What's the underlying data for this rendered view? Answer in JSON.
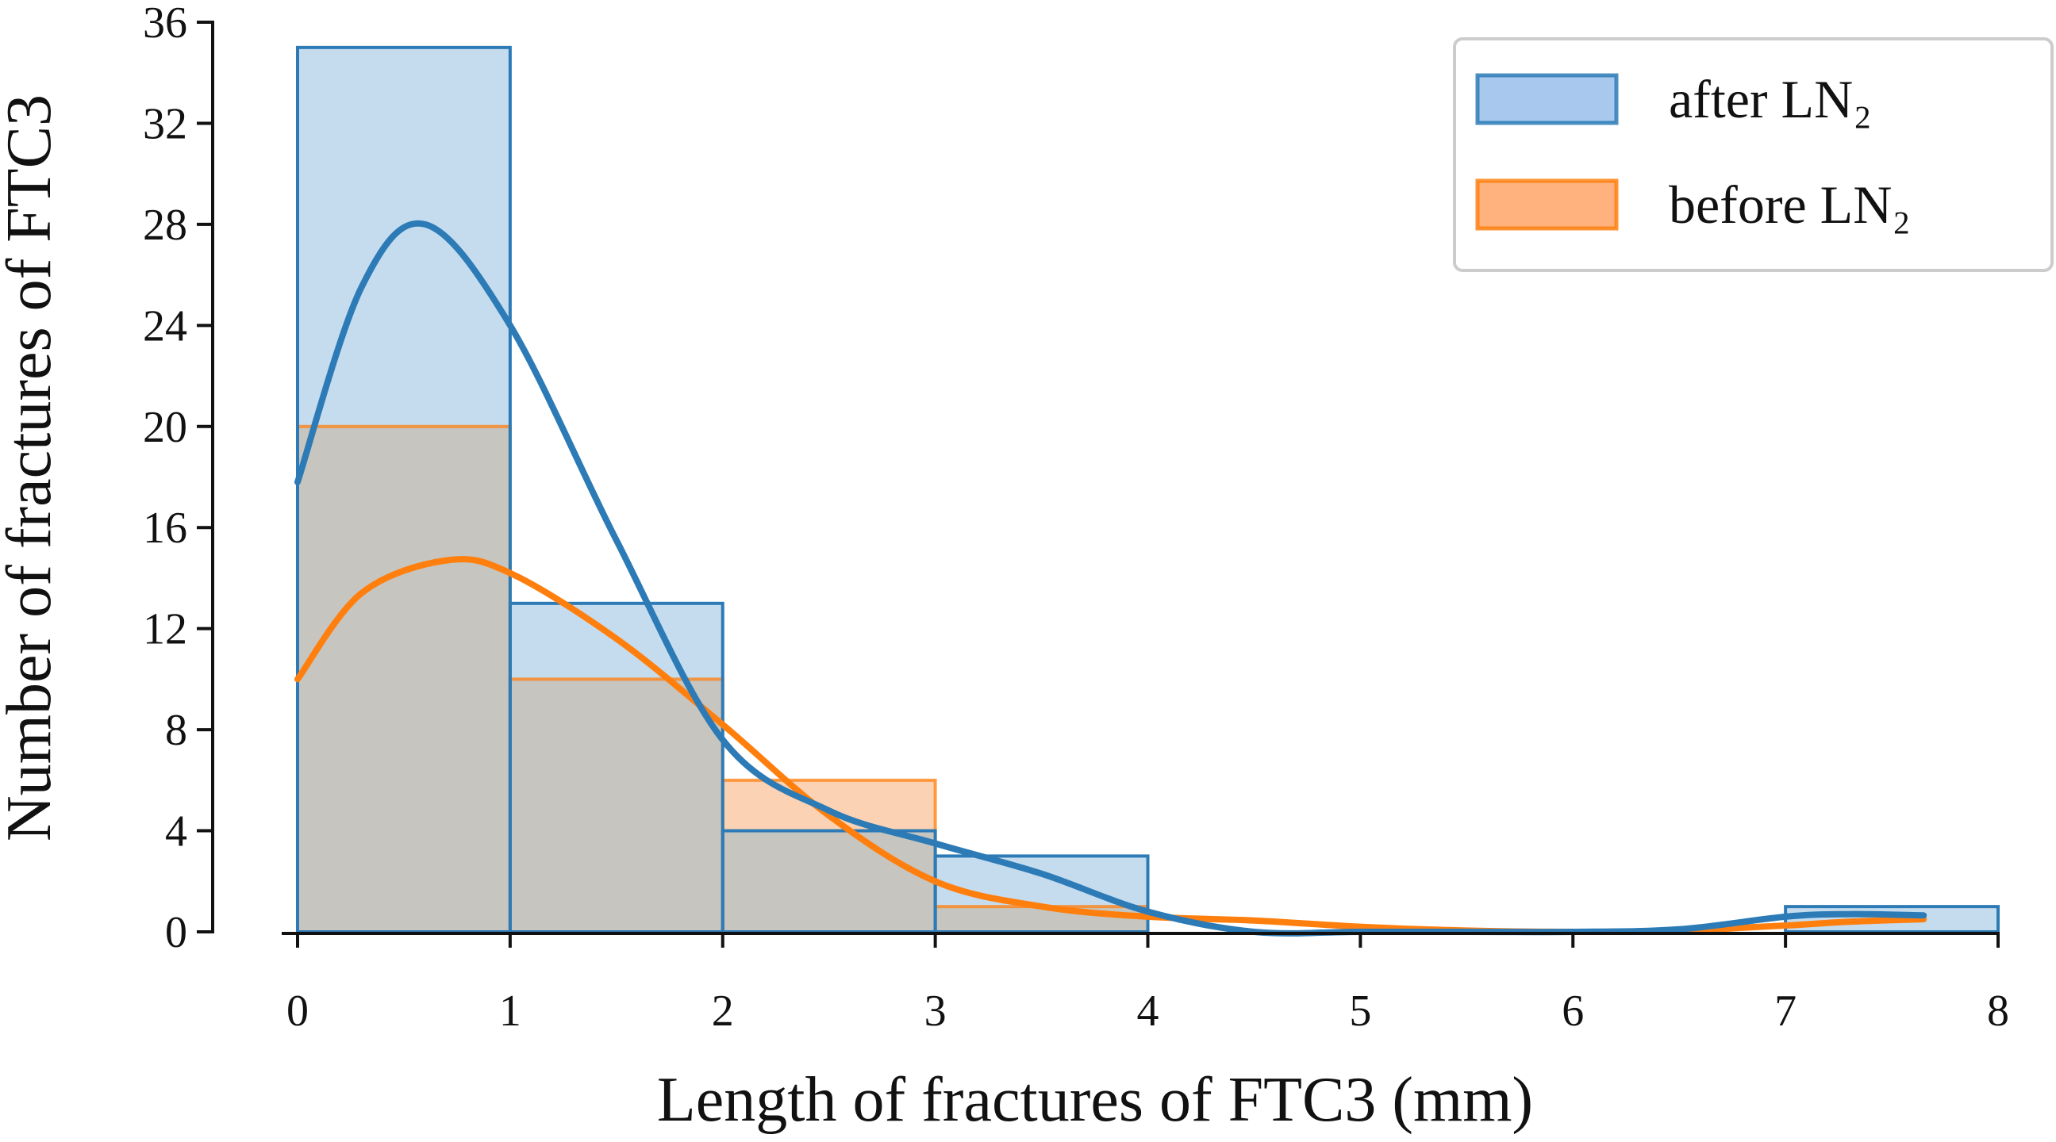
{
  "chart_data": {
    "type": "bar",
    "xlabel": "Length of fractures of FTC3 (mm)",
    "ylabel": "Number of fractures of FTC3",
    "xlim": [
      0,
      8
    ],
    "ylim": [
      0,
      36
    ],
    "xticks": [
      "0",
      "1",
      "2",
      "3",
      "4",
      "5",
      "6",
      "7",
      "8"
    ],
    "yticks": [
      "0",
      "4",
      "8",
      "12",
      "16",
      "20",
      "24",
      "28",
      "32",
      "36"
    ],
    "bin_edges": [
      0,
      1,
      2,
      3,
      4,
      5,
      6,
      7,
      8
    ],
    "grid": false,
    "legend_position": "top-right",
    "series": [
      {
        "name": "after LN₂",
        "counts": [
          35,
          13,
          4,
          3,
          0,
          0,
          0,
          1
        ],
        "color": "#2d7bb6",
        "fill": "#c5dcee",
        "legend_fill": "#a8c8ee",
        "kde": {
          "x": [
            0,
            0.3,
            0.6,
            1.0,
            1.5,
            2.0,
            2.5,
            3.0,
            3.5,
            4.0,
            4.5,
            5.0,
            5.5,
            6.0,
            6.5,
            7.0,
            7.3,
            7.65
          ],
          "y": [
            17.8,
            25.5,
            28.0,
            24.0,
            15.5,
            7.6,
            4.8,
            3.5,
            2.3,
            0.8,
            0.0,
            0.0,
            0.0,
            0.0,
            0.1,
            0.6,
            0.7,
            0.65
          ]
        }
      },
      {
        "name": "before LN₂",
        "counts": [
          20,
          10,
          6,
          1,
          0,
          0,
          0,
          0
        ],
        "color": "#ff7f0e",
        "fill": "#fbd3b4",
        "legend_fill": "#ffb27e",
        "kde": {
          "x": [
            0,
            0.3,
            0.7,
            1.0,
            1.5,
            2.0,
            2.5,
            3.0,
            3.5,
            4.0,
            4.5,
            5.0,
            5.5,
            6.0,
            6.5,
            7.0,
            7.3,
            7.65
          ],
          "y": [
            10.0,
            13.4,
            14.7,
            14.2,
            11.6,
            8.2,
            4.6,
            2.0,
            1.0,
            0.6,
            0.45,
            0.2,
            0.05,
            0.0,
            0.05,
            0.25,
            0.4,
            0.5
          ]
        }
      }
    ],
    "overlap_fill": "#c7c5bf"
  }
}
